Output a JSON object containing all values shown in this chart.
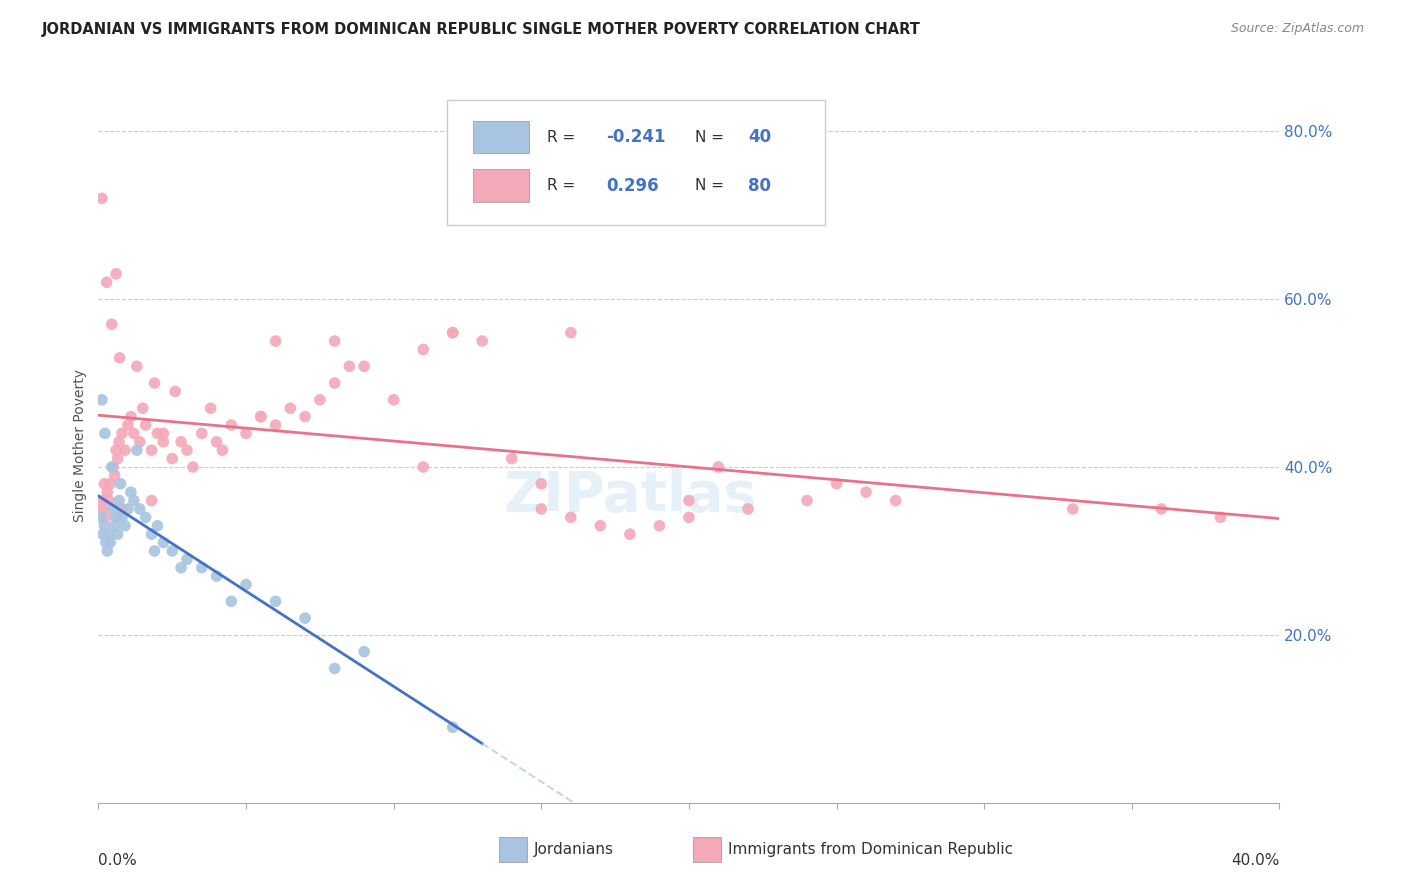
{
  "title": "JORDANIAN VS IMMIGRANTS FROM DOMINICAN REPUBLIC SINGLE MOTHER POVERTY CORRELATION CHART",
  "source": "Source: ZipAtlas.com",
  "ylabel": "Single Mother Poverty",
  "r1": "-0.241",
  "n1": "40",
  "r2": "0.296",
  "n2": "80",
  "color_jordanian": "#a8c4e0",
  "color_dr": "#f4a8b8",
  "color_blue_text": "#4472c4",
  "color_trend1": "#4472c4",
  "color_trend2": "#e8728a",
  "color_dash": "#b8cfe0",
  "watermark": "ZIPatlas",
  "x_max": 40.0,
  "y_max": 85.0,
  "jordy_x": [
    0.1,
    0.15,
    0.2,
    0.25,
    0.3,
    0.35,
    0.4,
    0.5,
    0.55,
    0.6,
    0.65,
    0.7,
    0.8,
    0.9,
    1.0,
    1.1,
    1.2,
    1.4,
    1.6,
    1.8,
    2.0,
    2.2,
    2.5,
    3.0,
    3.5,
    4.0,
    5.0,
    6.0,
    7.0,
    9.0,
    0.12,
    0.22,
    0.45,
    0.75,
    1.3,
    1.9,
    2.8,
    4.5,
    8.0,
    12.0
  ],
  "jordy_y": [
    34,
    32,
    33,
    31,
    30,
    32,
    31,
    35,
    33,
    34,
    32,
    36,
    34,
    33,
    35,
    37,
    36,
    35,
    34,
    32,
    33,
    31,
    30,
    29,
    28,
    27,
    26,
    24,
    22,
    18,
    48,
    44,
    40,
    38,
    42,
    30,
    28,
    24,
    16,
    9
  ],
  "dr_x": [
    0.1,
    0.15,
    0.2,
    0.25,
    0.3,
    0.35,
    0.4,
    0.5,
    0.55,
    0.6,
    0.65,
    0.7,
    0.8,
    0.9,
    1.0,
    1.1,
    1.2,
    1.4,
    1.6,
    1.8,
    2.0,
    2.2,
    2.5,
    2.8,
    3.0,
    3.5,
    4.0,
    4.5,
    5.0,
    5.5,
    6.0,
    6.5,
    7.0,
    7.5,
    8.0,
    9.0,
    10.0,
    11.0,
    12.0,
    13.0,
    14.0,
    15.0,
    16.0,
    17.0,
    18.0,
    19.0,
    20.0,
    22.0,
    24.0,
    26.0,
    0.12,
    0.28,
    0.45,
    0.72,
    1.3,
    1.9,
    2.6,
    3.8,
    5.5,
    8.0,
    11.0,
    15.0,
    20.0,
    25.0,
    0.6,
    1.5,
    2.2,
    3.2,
    4.2,
    6.0,
    8.5,
    12.0,
    16.0,
    21.0,
    27.0,
    33.0,
    36.0,
    38.0,
    0.8,
    1.8
  ],
  "dr_y": [
    36,
    35,
    38,
    34,
    37,
    36,
    38,
    40,
    39,
    42,
    41,
    43,
    44,
    42,
    45,
    46,
    44,
    43,
    45,
    42,
    44,
    43,
    41,
    43,
    42,
    44,
    43,
    45,
    44,
    46,
    45,
    47,
    46,
    48,
    50,
    52,
    48,
    54,
    56,
    55,
    41,
    35,
    34,
    33,
    32,
    33,
    34,
    35,
    36,
    37,
    72,
    62,
    57,
    53,
    52,
    50,
    49,
    47,
    46,
    55,
    40,
    38,
    36,
    38,
    63,
    47,
    44,
    40,
    42,
    55,
    52,
    56,
    56,
    40,
    36,
    35,
    35,
    34,
    35,
    36
  ]
}
